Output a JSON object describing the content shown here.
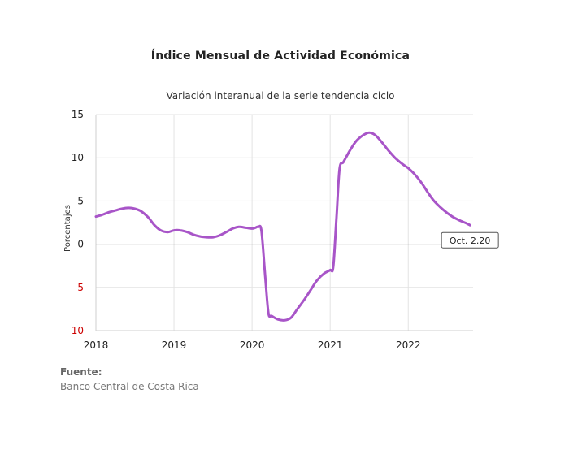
{
  "chart_data": {
    "type": "line",
    "title": "Índice Mensual de  Actividad Económica",
    "subtitle": "Variación interanual de la serie tendencia ciclo",
    "xlabel": "",
    "ylabel": "Porcentajes",
    "xlim": [
      2018.0,
      2022.83
    ],
    "ylim": [
      -10,
      15
    ],
    "yticks": [
      15,
      10,
      5,
      0,
      -5,
      -10
    ],
    "xticks": [
      "2018",
      "2019",
      "2020",
      "2021",
      "2022"
    ],
    "negative_tick_color": "#cc0000",
    "grid": true,
    "series": [
      {
        "color": "#a855c8",
        "points": [
          [
            2018.0,
            3.2
          ],
          [
            2018.08,
            3.4
          ],
          [
            2018.17,
            3.7
          ],
          [
            2018.25,
            3.9
          ],
          [
            2018.33,
            4.1
          ],
          [
            2018.42,
            4.2
          ],
          [
            2018.5,
            4.1
          ],
          [
            2018.58,
            3.8
          ],
          [
            2018.67,
            3.1
          ],
          [
            2018.75,
            2.2
          ],
          [
            2018.83,
            1.6
          ],
          [
            2018.92,
            1.4
          ],
          [
            2019.0,
            1.6
          ],
          [
            2019.08,
            1.6
          ],
          [
            2019.17,
            1.4
          ],
          [
            2019.25,
            1.1
          ],
          [
            2019.33,
            0.9
          ],
          [
            2019.42,
            0.8
          ],
          [
            2019.5,
            0.8
          ],
          [
            2019.58,
            1.0
          ],
          [
            2019.67,
            1.4
          ],
          [
            2019.75,
            1.8
          ],
          [
            2019.83,
            2.0
          ],
          [
            2019.92,
            1.9
          ],
          [
            2020.0,
            1.8
          ],
          [
            2020.04,
            1.9
          ],
          [
            2020.08,
            2.0
          ],
          [
            2020.12,
            1.5
          ],
          [
            2020.17,
            -4.0
          ],
          [
            2020.21,
            -8.0
          ],
          [
            2020.25,
            -8.3
          ],
          [
            2020.33,
            -8.7
          ],
          [
            2020.42,
            -8.8
          ],
          [
            2020.5,
            -8.5
          ],
          [
            2020.58,
            -7.5
          ],
          [
            2020.67,
            -6.4
          ],
          [
            2020.75,
            -5.3
          ],
          [
            2020.83,
            -4.2
          ],
          [
            2020.92,
            -3.4
          ],
          [
            2021.0,
            -3.0
          ],
          [
            2021.04,
            -2.6
          ],
          [
            2021.08,
            3.0
          ],
          [
            2021.12,
            8.7
          ],
          [
            2021.17,
            9.5
          ],
          [
            2021.25,
            10.8
          ],
          [
            2021.33,
            11.9
          ],
          [
            2021.42,
            12.6
          ],
          [
            2021.5,
            12.9
          ],
          [
            2021.58,
            12.6
          ],
          [
            2021.67,
            11.7
          ],
          [
            2021.75,
            10.8
          ],
          [
            2021.83,
            10.0
          ],
          [
            2021.92,
            9.3
          ],
          [
            2022.0,
            8.8
          ],
          [
            2022.08,
            8.1
          ],
          [
            2022.17,
            7.1
          ],
          [
            2022.25,
            6.0
          ],
          [
            2022.33,
            5.0
          ],
          [
            2022.42,
            4.2
          ],
          [
            2022.5,
            3.6
          ],
          [
            2022.58,
            3.1
          ],
          [
            2022.67,
            2.7
          ],
          [
            2022.75,
            2.4
          ],
          [
            2022.79,
            2.2
          ]
        ]
      }
    ],
    "annotation": {
      "text": "Oct. 2.20",
      "x": 2022.79,
      "y": 2.2
    }
  },
  "source": {
    "label": "Fuente:",
    "value": "Banco Central de Costa Rica"
  }
}
